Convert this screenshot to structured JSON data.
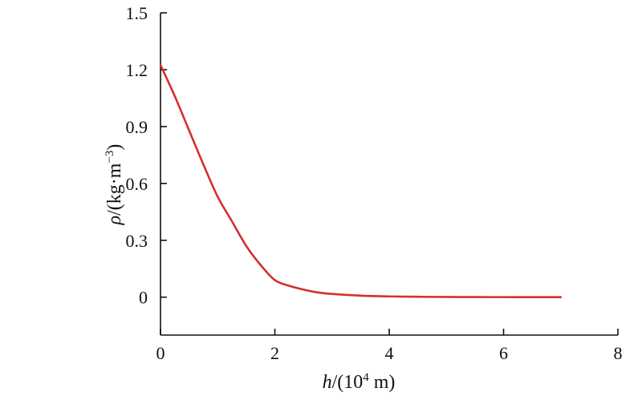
{
  "chart_data": {
    "type": "line",
    "xlabel": {
      "var": "h",
      "pre": "/(10",
      "sup": "4",
      "post": " m)"
    },
    "ylabel": {
      "var": "ρ",
      "pre": "/(kg·m",
      "sup": "−3",
      "post": ")"
    },
    "xlim": [
      0,
      8
    ],
    "ylim": [
      -0.2,
      1.5
    ],
    "xticks": [
      0,
      2,
      4,
      6,
      8
    ],
    "xtick_labels": [
      "0",
      "2",
      "4",
      "6",
      "8"
    ],
    "yticks": [
      0,
      0.3,
      0.6,
      0.9,
      1.2,
      1.5
    ],
    "ytick_labels": [
      "0",
      "0.3",
      "0.6",
      "0.9",
      "1.2",
      "1.5"
    ],
    "grid": false,
    "series": [
      {
        "color": "#d62f2f",
        "x": [
          0,
          0.25,
          0.5,
          0.75,
          1.0,
          1.25,
          1.5,
          1.75,
          2.0,
          2.25,
          2.5,
          2.75,
          3.0,
          3.5,
          4.0,
          4.5,
          5.0,
          5.5,
          6.0,
          6.5,
          7.0
        ],
        "y": [
          1.225,
          1.06,
          0.88,
          0.7,
          0.53,
          0.4,
          0.27,
          0.17,
          0.09,
          0.06,
          0.04,
          0.025,
          0.017,
          0.008,
          0.004,
          0.002,
          0.001,
          0.0005,
          0.0003,
          0.0001,
          0.0001
        ]
      }
    ]
  }
}
